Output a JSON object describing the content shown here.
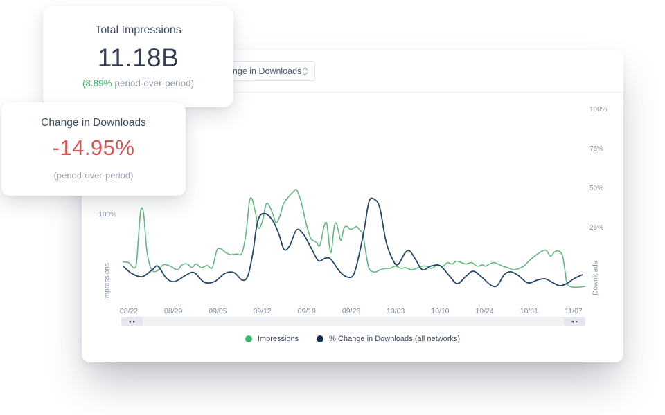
{
  "colors": {
    "positive_green": "#3cb96a",
    "negative_red": "#d9534f",
    "impressions_line": "#62b87e",
    "impressions_dot": "#3cb96a",
    "downloads_line": "#234769",
    "downloads_dot": "#152f4d"
  },
  "cards": {
    "total_impressions": {
      "title": "Total Impressions",
      "value": "11.18B",
      "caption_highlight": "(8.89%",
      "caption_rest": " period-over-period)"
    },
    "change_in_downloads": {
      "title": "Change in Downloads",
      "value": "-14.95%",
      "caption": "(period-over-period)"
    }
  },
  "chart_panel": {
    "metric_select": {
      "value": "Change in Downloads"
    },
    "scrollbar": {
      "arrow_left": "◂",
      "arrow_right": "▸"
    }
  },
  "chart_data": {
    "type": "line",
    "x_tick_labels": [
      "08/22",
      "08/29",
      "09/05",
      "09/12",
      "09/19",
      "09/26",
      "10/03",
      "10/10",
      "10/24",
      "10/31",
      "11/07"
    ],
    "left_axis": {
      "title": "Impressions",
      "unit": "%",
      "ticks": [
        {
          "label": "100%",
          "value": 100
        }
      ]
    },
    "right_axis": {
      "title": "Downloads",
      "unit": "%",
      "ticks": [
        {
          "label": "100%",
          "value": 100
        },
        {
          "label": "75%",
          "value": 75
        },
        {
          "label": "50%",
          "value": 50
        },
        {
          "label": "25%",
          "value": 25
        }
      ]
    },
    "legend_position": "bottom",
    "grid": false,
    "series": [
      {
        "name": "Impressions",
        "axis": "left",
        "color": "#62b87e",
        "dot_color": "#3cb96a",
        "points": [
          [
            0.004,
            35
          ],
          [
            0.016,
            34
          ],
          [
            0.031,
            28
          ],
          [
            0.037,
            68
          ],
          [
            0.042,
            106
          ],
          [
            0.048,
            103
          ],
          [
            0.055,
            52
          ],
          [
            0.064,
            26
          ],
          [
            0.076,
            22
          ],
          [
            0.091,
            31
          ],
          [
            0.106,
            29
          ],
          [
            0.121,
            24
          ],
          [
            0.131,
            31
          ],
          [
            0.143,
            32
          ],
          [
            0.152,
            27
          ],
          [
            0.161,
            32
          ],
          [
            0.173,
            27
          ],
          [
            0.185,
            30
          ],
          [
            0.196,
            27
          ],
          [
            0.206,
            51
          ],
          [
            0.215,
            53
          ],
          [
            0.225,
            48
          ],
          [
            0.236,
            45
          ],
          [
            0.248,
            46
          ],
          [
            0.26,
            47
          ],
          [
            0.269,
            75
          ],
          [
            0.276,
            118
          ],
          [
            0.282,
            122
          ],
          [
            0.29,
            101
          ],
          [
            0.296,
            82
          ],
          [
            0.304,
            91
          ],
          [
            0.312,
            115
          ],
          [
            0.319,
            113
          ],
          [
            0.327,
            101
          ],
          [
            0.334,
            89
          ],
          [
            0.343,
            101
          ],
          [
            0.349,
            115
          ],
          [
            0.36,
            125
          ],
          [
            0.37,
            132
          ],
          [
            0.378,
            135
          ],
          [
            0.387,
            120
          ],
          [
            0.394,
            101
          ],
          [
            0.401,
            82
          ],
          [
            0.409,
            67
          ],
          [
            0.419,
            63
          ],
          [
            0.428,
            58
          ],
          [
            0.437,
            84
          ],
          [
            0.443,
            88
          ],
          [
            0.449,
            55
          ],
          [
            0.453,
            50
          ],
          [
            0.459,
            84
          ],
          [
            0.464,
            88
          ],
          [
            0.47,
            72
          ],
          [
            0.474,
            65
          ],
          [
            0.48,
            82
          ],
          [
            0.487,
            84
          ],
          [
            0.494,
            80
          ],
          [
            0.501,
            82
          ],
          [
            0.507,
            84
          ],
          [
            0.513,
            80
          ],
          [
            0.521,
            72
          ],
          [
            0.527,
            48
          ],
          [
            0.534,
            26
          ],
          [
            0.546,
            21
          ],
          [
            0.558,
            24
          ],
          [
            0.569,
            26
          ],
          [
            0.579,
            26
          ],
          [
            0.591,
            29
          ],
          [
            0.603,
            26
          ],
          [
            0.613,
            27
          ],
          [
            0.625,
            24
          ],
          [
            0.636,
            26
          ],
          [
            0.648,
            29
          ],
          [
            0.658,
            29
          ],
          [
            0.669,
            26
          ],
          [
            0.681,
            31
          ],
          [
            0.693,
            29
          ],
          [
            0.703,
            34
          ],
          [
            0.713,
            32
          ],
          [
            0.722,
            36
          ],
          [
            0.733,
            34
          ],
          [
            0.743,
            32
          ],
          [
            0.755,
            34
          ],
          [
            0.767,
            29
          ],
          [
            0.778,
            31
          ],
          [
            0.785,
            29
          ],
          [
            0.793,
            32
          ],
          [
            0.803,
            34
          ],
          [
            0.812,
            32
          ],
          [
            0.822,
            29
          ],
          [
            0.833,
            27
          ],
          [
            0.845,
            24
          ],
          [
            0.857,
            26
          ],
          [
            0.867,
            29
          ],
          [
            0.878,
            36
          ],
          [
            0.887,
            41
          ],
          [
            0.897,
            46
          ],
          [
            0.907,
            50
          ],
          [
            0.916,
            51
          ],
          [
            0.925,
            43
          ],
          [
            0.934,
            49
          ],
          [
            0.943,
            50
          ],
          [
            0.951,
            43
          ],
          [
            0.957,
            19
          ],
          [
            0.961,
            4
          ],
          [
            0.972,
            0
          ],
          [
            0.987,
            0
          ],
          [
            0.999,
            1
          ]
        ]
      },
      {
        "name": "% Change in Downloads (all networks)",
        "axis": "right",
        "color": "#234769",
        "dot_color": "#152f4d",
        "points": [
          [
            0.004,
            1
          ],
          [
            0.022,
            -3.5
          ],
          [
            0.045,
            -5.7
          ],
          [
            0.067,
            -1.3
          ],
          [
            0.079,
            1
          ],
          [
            0.097,
            -6.6
          ],
          [
            0.115,
            -8.8
          ],
          [
            0.139,
            -4.8
          ],
          [
            0.157,
            -3.1
          ],
          [
            0.179,
            -9.2
          ],
          [
            0.201,
            -8.8
          ],
          [
            0.224,
            -3.5
          ],
          [
            0.243,
            -3.1
          ],
          [
            0.261,
            -7.9
          ],
          [
            0.273,
            -5
          ],
          [
            0.284,
            10
          ],
          [
            0.291,
            25
          ],
          [
            0.299,
            33
          ],
          [
            0.313,
            34
          ],
          [
            0.328,
            29
          ],
          [
            0.34,
            21
          ],
          [
            0.351,
            11.5
          ],
          [
            0.363,
            14
          ],
          [
            0.378,
            24
          ],
          [
            0.393,
            21
          ],
          [
            0.41,
            12
          ],
          [
            0.425,
            4.4
          ],
          [
            0.44,
            6.1
          ],
          [
            0.452,
            5.3
          ],
          [
            0.47,
            -2.2
          ],
          [
            0.485,
            -5.7
          ],
          [
            0.5,
            -4.8
          ],
          [
            0.512,
            7.5
          ],
          [
            0.524,
            25
          ],
          [
            0.534,
            42
          ],
          [
            0.545,
            43.4
          ],
          [
            0.557,
            38
          ],
          [
            0.571,
            16
          ],
          [
            0.587,
            4
          ],
          [
            0.597,
            2.2
          ],
          [
            0.612,
            9.6
          ],
          [
            0.622,
            10.5
          ],
          [
            0.634,
            5.3
          ],
          [
            0.649,
            -1.3
          ],
          [
            0.667,
            1
          ],
          [
            0.687,
            1.3
          ],
          [
            0.706,
            -4.8
          ],
          [
            0.724,
            -10.1
          ],
          [
            0.742,
            -5.7
          ],
          [
            0.758,
            -2.2
          ],
          [
            0.776,
            -5.7
          ],
          [
            0.796,
            -11
          ],
          [
            0.81,
            -11.4
          ],
          [
            0.825,
            -4.5
          ],
          [
            0.839,
            -2.6
          ],
          [
            0.855,
            -4.8
          ],
          [
            0.876,
            -9.6
          ],
          [
            0.896,
            -7.9
          ],
          [
            0.913,
            -7
          ],
          [
            0.928,
            -9.2
          ],
          [
            0.945,
            -11.4
          ],
          [
            0.96,
            -10.1
          ],
          [
            0.975,
            -7
          ],
          [
            0.993,
            -4.5
          ]
        ]
      }
    ]
  }
}
